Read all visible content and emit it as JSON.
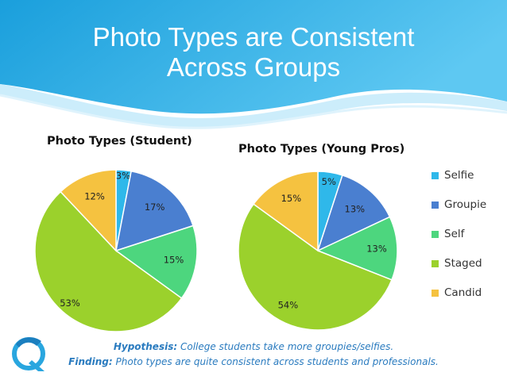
{
  "slide": {
    "title_line1": "Photo Types are Consistent",
    "title_line2": "Across Groups",
    "colors": {
      "banner_dark": "#1a9fdc",
      "banner_light": "#5ec8f2",
      "footer_text": "#2a7bbf"
    }
  },
  "legend": [
    {
      "label": "Selfie",
      "color": "#2fb8ea"
    },
    {
      "label": "Groupie",
      "color": "#4a7fd0"
    },
    {
      "label": "Self",
      "color": "#4dd67e"
    },
    {
      "label": "Staged",
      "color": "#9bd12c"
    },
    {
      "label": "Candid",
      "color": "#f5c240"
    }
  ],
  "chart_data": [
    {
      "type": "pie",
      "title": "Photo Types (Student)",
      "categories": [
        "Selfie",
        "Groupie",
        "Self",
        "Staged",
        "Candid"
      ],
      "values": [
        3,
        17,
        15,
        53,
        12
      ],
      "labels": [
        "3%",
        "17%",
        "15%",
        "53%",
        "12%"
      ],
      "legend": "right"
    },
    {
      "type": "pie",
      "title": "Photo Types (Young Pros)",
      "categories": [
        "Selfie",
        "Groupie",
        "Self",
        "Staged",
        "Candid"
      ],
      "values": [
        5,
        13,
        13,
        54,
        15
      ],
      "labels": [
        "5%",
        "13%",
        "13%",
        "54%",
        "15%"
      ],
      "legend": "right"
    }
  ],
  "footer": {
    "hypothesis_label": "Hypothesis:",
    "hypothesis_text": " College students take more groupies/selfies.",
    "finding_label": "Finding:",
    "finding_text": " Photo types are quite consistent across students and professionals."
  }
}
